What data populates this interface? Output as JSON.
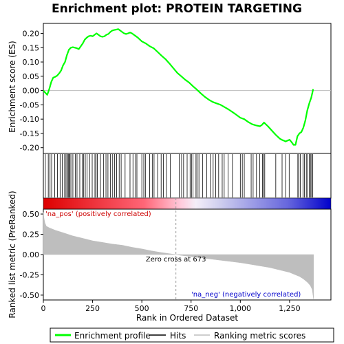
{
  "chart_data": {
    "type": "line",
    "title": "Enrichment plot: PROTEIN TARGETING",
    "panels": {
      "es": {
        "ylabel": "Enrichment score (ES)",
        "ylim": [
          -0.22,
          0.235
        ],
        "yticks": [
          -0.2,
          -0.15,
          -0.1,
          -0.05,
          0.0,
          0.05,
          0.1,
          0.15,
          0.2
        ],
        "ytick_labels": [
          "-0.20",
          "-0.15",
          "-0.10",
          "-0.05",
          "0.00",
          "0.05",
          "0.10",
          "0.15",
          "0.20"
        ],
        "series": [
          {
            "name": "Enrichment profile",
            "color": "#00ff00",
            "x": [
              0,
              10,
              20,
              30,
              40,
              50,
              60,
              70,
              80,
              90,
              100,
              110,
              120,
              130,
              140,
              150,
              160,
              170,
              180,
              190,
              200,
              210,
              220,
              230,
              240,
              250,
              260,
              270,
              280,
              290,
              300,
              310,
              320,
              330,
              340,
              350,
              360,
              370,
              380,
              390,
              400,
              410,
              420,
              430,
              440,
              450,
              460,
              470,
              480,
              500,
              520,
              540,
              560,
              580,
              600,
              620,
              640,
              660,
              680,
              700,
              720,
              740,
              760,
              780,
              800,
              820,
              840,
              860,
              880,
              900,
              920,
              940,
              960,
              980,
              1000,
              1020,
              1040,
              1060,
              1080,
              1100,
              1110,
              1120,
              1140,
              1160,
              1180,
              1200,
              1210,
              1220,
              1230,
              1240,
              1250,
              1260,
              1270,
              1280,
              1290,
              1300,
              1310,
              1320,
              1330,
              1340,
              1350,
              1360,
              1370
            ],
            "y": [
              0.0,
              -0.008,
              -0.015,
              0.005,
              0.03,
              0.045,
              0.048,
              0.052,
              0.06,
              0.07,
              0.088,
              0.1,
              0.125,
              0.143,
              0.15,
              0.152,
              0.15,
              0.148,
              0.145,
              0.155,
              0.165,
              0.178,
              0.185,
              0.19,
              0.192,
              0.19,
              0.195,
              0.2,
              0.195,
              0.19,
              0.188,
              0.19,
              0.195,
              0.198,
              0.205,
              0.21,
              0.212,
              0.213,
              0.215,
              0.21,
              0.205,
              0.2,
              0.198,
              0.2,
              0.203,
              0.2,
              0.195,
              0.19,
              0.185,
              0.172,
              0.165,
              0.155,
              0.148,
              0.135,
              0.122,
              0.11,
              0.095,
              0.078,
              0.062,
              0.05,
              0.038,
              0.028,
              0.015,
              0.003,
              -0.01,
              -0.022,
              -0.032,
              -0.04,
              -0.045,
              -0.05,
              -0.058,
              -0.066,
              -0.075,
              -0.085,
              -0.095,
              -0.1,
              -0.11,
              -0.118,
              -0.122,
              -0.125,
              -0.12,
              -0.112,
              -0.125,
              -0.14,
              -0.155,
              -0.168,
              -0.172,
              -0.175,
              -0.178,
              -0.175,
              -0.172,
              -0.18,
              -0.19,
              -0.19,
              -0.16,
              -0.15,
              -0.145,
              -0.13,
              -0.105,
              -0.07,
              -0.045,
              -0.025,
              0.005
            ]
          }
        ]
      },
      "metric": {
        "ylabel": "Ranked list metric (PreRanked)",
        "ylim": [
          -0.56,
          0.56
        ],
        "yticks": [
          -0.5,
          -0.25,
          0.0,
          0.25,
          0.5
        ],
        "ytick_labels": [
          "-0.50",
          "-0.25",
          "0.00",
          "0.25",
          "0.50"
        ],
        "series": [
          {
            "name": "Ranking metric scores",
            "color": "#bebebe",
            "x": [
              0,
              3,
              8,
              15,
              30,
              60,
              100,
              150,
              200,
              250,
              300,
              350,
              400,
              450,
              500,
              550,
              600,
              650,
              673,
              700,
              750,
              800,
              850,
              900,
              950,
              1000,
              1050,
              1100,
              1150,
              1200,
              1250,
              1280,
              1300,
              1320,
              1340,
              1355,
              1365,
              1372
            ],
            "y": [
              0.52,
              0.45,
              0.39,
              0.35,
              0.33,
              0.3,
              0.27,
              0.23,
              0.2,
              0.17,
              0.15,
              0.13,
              0.115,
              0.09,
              0.07,
              0.045,
              0.025,
              0.008,
              0.0,
              -0.01,
              -0.025,
              -0.04,
              -0.055,
              -0.07,
              -0.085,
              -0.1,
              -0.12,
              -0.14,
              -0.16,
              -0.19,
              -0.22,
              -0.25,
              -0.27,
              -0.3,
              -0.34,
              -0.38,
              -0.43,
              -0.55
            ]
          }
        ],
        "annotations": [
          "'na_pos' (positively correlated)",
          "'na_neg' (negatively correlated)",
          "Zero cross at 673"
        ],
        "zero_cross": 673
      }
    },
    "hits": [
      10,
      25,
      34,
      42,
      58,
      72,
      85,
      96,
      108,
      115,
      121,
      126,
      130,
      135,
      140,
      150,
      162,
      171,
      185,
      198,
      205,
      213,
      222,
      235,
      248,
      262,
      268,
      274,
      290,
      305,
      318,
      328,
      340,
      352,
      362,
      372,
      385,
      395,
      415,
      440,
      455,
      468,
      475,
      500,
      510,
      518,
      540,
      553,
      562,
      580,
      598,
      610,
      625,
      645,
      690,
      702,
      712,
      730,
      745,
      752,
      760,
      775,
      780,
      790,
      808,
      830,
      848,
      862,
      875,
      890,
      908,
      918,
      938,
      960,
      1000,
      1010,
      1020,
      1055,
      1065,
      1082,
      1098,
      1112,
      1118,
      1124,
      1180,
      1212,
      1230,
      1248,
      1292,
      1298,
      1305,
      1318,
      1325,
      1335,
      1342,
      1350,
      1356,
      1362,
      1368
    ],
    "xaxis": {
      "label": "Rank in Ordered Dataset",
      "xlim": [
        0,
        1460
      ],
      "ticks": [
        0,
        250,
        500,
        750,
        1000,
        1250
      ],
      "tick_labels": [
        "0",
        "250",
        "500",
        "750",
        "1,000",
        "1,250"
      ]
    },
    "legend": {
      "placement": "bottom",
      "items": [
        {
          "label": "Enrichment profile",
          "color": "#00ff00"
        },
        {
          "label": "Hits",
          "color": "#000000"
        },
        {
          "label": "Ranking metric scores",
          "color": "#bebebe"
        }
      ]
    },
    "colors": {
      "positive": "#dd0000",
      "negative": "#0000cc",
      "text_pos": "#cc0000",
      "text_neg": "#0000cc"
    }
  }
}
